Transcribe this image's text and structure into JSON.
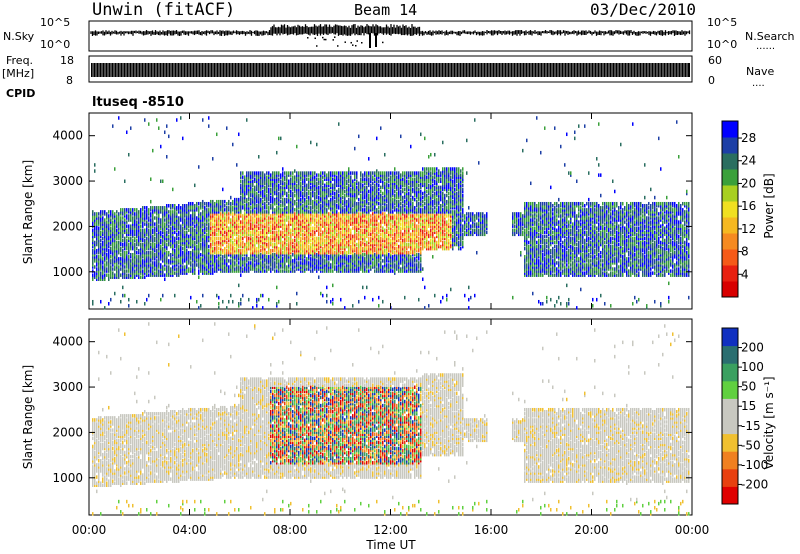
{
  "header": {
    "station": "Unwin (fitACF)",
    "beam": "Beam 14",
    "date": "03/Dec/2010"
  },
  "side_labels": {
    "nsky": "N.Sky",
    "freq": "Freq.",
    "freq_unit": "[MHz]",
    "cpid": "CPID",
    "nsearch": "N.Search",
    "nave": "Nave",
    "dots": "......",
    "dots_short": "...."
  },
  "cpid_text": "ltuseq -8510",
  "panel_ticks": {
    "noise_left": [
      "10^5",
      "10^0"
    ],
    "noise_right": [
      "10^5",
      "10^0"
    ],
    "freq_left": [
      "18",
      "8"
    ],
    "nave_right": [
      "60",
      "0"
    ]
  },
  "chart_data": [
    {
      "type": "heatmap",
      "name": "power",
      "ylabel": "Slant Range [km]",
      "yticks": [
        1000,
        2000,
        3000,
        4000
      ],
      "ylim": [
        180,
        4500
      ],
      "colorbar": {
        "label": "Power [dB]",
        "ticks": [
          4,
          8,
          12,
          16,
          20,
          24,
          28
        ],
        "range": [
          0,
          31
        ],
        "colors": [
          "#0000ff",
          "#1d3fa6",
          "#2a6e60",
          "#3aa03a",
          "#a8d020",
          "#f0e020",
          "#f5b820",
          "#f58a20",
          "#f55a18",
          "#e82010",
          "#d80000"
        ]
      }
    },
    {
      "type": "heatmap",
      "name": "velocity",
      "ylabel": "Slant Range [km]",
      "yticks": [
        1000,
        2000,
        3000,
        4000
      ],
      "ylim": [
        180,
        4500
      ],
      "xlabel": "Time UT",
      "xticks": [
        "00:00",
        "04:00",
        "08:00",
        "12:00",
        "16:00",
        "20:00",
        "00:00"
      ],
      "colorbar": {
        "label": "Velocity [m s⁻¹]",
        "ticks": [
          200,
          100,
          50,
          15,
          -15,
          -50,
          -100,
          -200
        ],
        "colors": [
          "#1030c0",
          "#2a6e70",
          "#3aa060",
          "#60d040",
          "#c8c8c0",
          "#c8c8c0",
          "#f0c030",
          "#f08020",
          "#e84010",
          "#e00000"
        ]
      }
    }
  ],
  "colors": {
    "axis": "#000000",
    "background": "#ffffff"
  }
}
